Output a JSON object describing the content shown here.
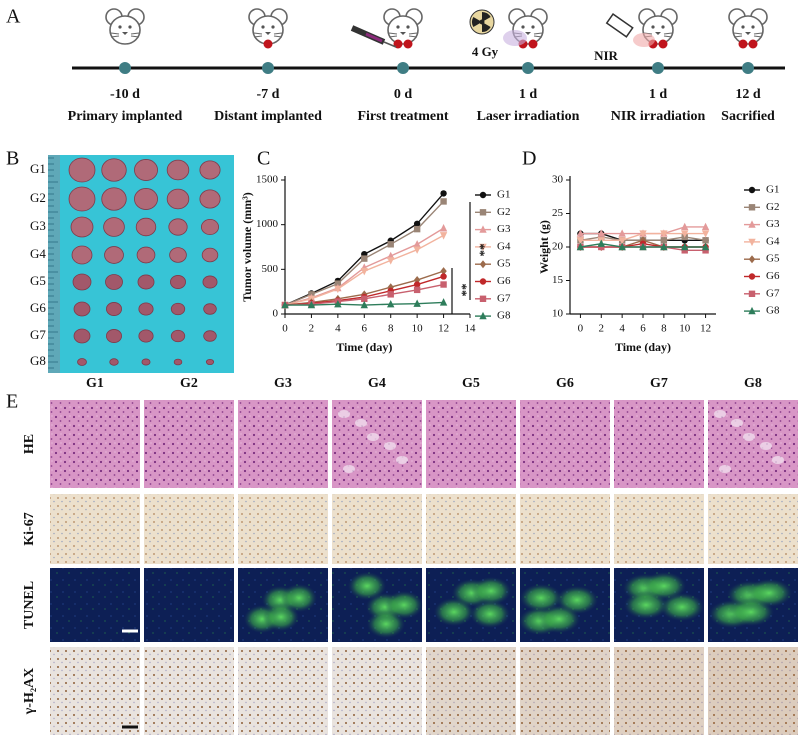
{
  "panel_labels": [
    "A",
    "B",
    "C",
    "D",
    "E"
  ],
  "timeline": [
    {
      "day": "-10 d",
      "event": "Primary implanted"
    },
    {
      "day": "-7 d",
      "event": "Distant implanted"
    },
    {
      "day": "0 d",
      "event": "First treatment"
    },
    {
      "day": "1 d",
      "event": "Laser irradiation"
    },
    {
      "day": "1 d",
      "event": "NIR irradiation"
    },
    {
      "day": "12 d",
      "event": "Sacrified"
    }
  ],
  "timeline_notes": {
    "dose": "4 Gy",
    "light": "NIR"
  },
  "photo_rows": [
    "G1",
    "G2",
    "G3",
    "G4",
    "G5",
    "G6",
    "G7",
    "G8"
  ],
  "chart_data": [
    {
      "type": "line",
      "xlabel": "Time (day)",
      "ylabel": "Tumor volume (mm³)",
      "x": [
        0,
        2,
        4,
        6,
        8,
        10,
        12
      ],
      "xlim": [
        0,
        14
      ],
      "xticks": [
        0,
        2,
        4,
        6,
        8,
        10,
        12,
        14
      ],
      "ylim": [
        0,
        1500
      ],
      "yticks": [
        0,
        500,
        1000,
        1500
      ],
      "annotations": [
        "**",
        "**"
      ],
      "series": [
        {
          "name": "G1",
          "color": "#111111",
          "marker": "circle",
          "values": [
            100,
            230,
            370,
            670,
            820,
            1010,
            1350
          ]
        },
        {
          "name": "G2",
          "color": "#9a8576",
          "marker": "square",
          "values": [
            100,
            220,
            340,
            620,
            780,
            950,
            1260
          ]
        },
        {
          "name": "G3",
          "color": "#e39a9a",
          "marker": "triangle-up",
          "values": [
            100,
            180,
            290,
            520,
            650,
            780,
            960
          ]
        },
        {
          "name": "G4",
          "color": "#f2b39e",
          "marker": "triangle-down",
          "values": [
            100,
            170,
            280,
            480,
            600,
            720,
            880
          ]
        },
        {
          "name": "G5",
          "color": "#9c6b4c",
          "marker": "diamond",
          "values": [
            100,
            130,
            170,
            220,
            300,
            380,
            480
          ]
        },
        {
          "name": "G6",
          "color": "#c0282a",
          "marker": "circle",
          "values": [
            100,
            120,
            150,
            190,
            260,
            330,
            420
          ]
        },
        {
          "name": "G7",
          "color": "#c8606e",
          "marker": "square",
          "values": [
            100,
            110,
            140,
            170,
            220,
            270,
            330
          ]
        },
        {
          "name": "G8",
          "color": "#2e7d5b",
          "marker": "triangle-up",
          "values": [
            100,
            100,
            110,
            100,
            110,
            115,
            130
          ]
        }
      ]
    },
    {
      "type": "line",
      "xlabel": "Time (day)",
      "ylabel": "Weight (g)",
      "x": [
        0,
        2,
        4,
        6,
        8,
        10,
        12
      ],
      "xlim": [
        -1,
        13
      ],
      "xticks": [
        0,
        2,
        4,
        6,
        8,
        10,
        12
      ],
      "ylim": [
        10,
        30
      ],
      "yticks": [
        10,
        15,
        20,
        25,
        30
      ],
      "series": [
        {
          "name": "G1",
          "color": "#111111",
          "marker": "circle",
          "values": [
            22,
            22,
            21,
            21,
            21,
            21,
            21
          ]
        },
        {
          "name": "G2",
          "color": "#9a8576",
          "marker": "square",
          "values": [
            21,
            21.5,
            21,
            21,
            21,
            21.5,
            21
          ]
        },
        {
          "name": "G3",
          "color": "#e39a9a",
          "marker": "triangle-up",
          "values": [
            22,
            22,
            22,
            22,
            22,
            23,
            23
          ]
        },
        {
          "name": "G4",
          "color": "#f2b39e",
          "marker": "triangle-down",
          "values": [
            21,
            21,
            21,
            22,
            22,
            22,
            22
          ]
        },
        {
          "name": "G5",
          "color": "#9c6b4c",
          "marker": "diamond",
          "values": [
            20,
            20,
            20,
            21,
            20,
            20,
            20
          ]
        },
        {
          "name": "G6",
          "color": "#c0282a",
          "marker": "circle",
          "values": [
            20,
            20,
            20,
            20.5,
            20,
            20,
            20
          ]
        },
        {
          "name": "G7",
          "color": "#c8606e",
          "marker": "square",
          "values": [
            20,
            20,
            20,
            20,
            20,
            19.5,
            19.5
          ]
        },
        {
          "name": "G8",
          "color": "#2e7d5b",
          "marker": "triangle-up",
          "values": [
            20,
            20.5,
            20,
            20,
            20,
            20,
            20
          ]
        }
      ]
    }
  ],
  "histology": {
    "columns": [
      "G1",
      "G2",
      "G3",
      "G4",
      "G5",
      "G6",
      "G7",
      "G8"
    ],
    "rows": [
      "HE",
      "Ki-67",
      "TUNEL",
      "γ-H₂AX"
    ]
  }
}
